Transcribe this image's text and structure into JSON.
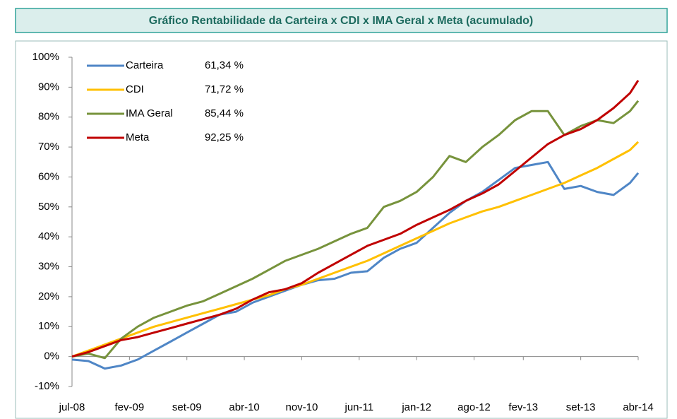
{
  "chart_data": {
    "type": "line",
    "title": "Gráfico Rentabilidade da Carteira x CDI x IMA Geral x Meta (acumulado)",
    "x": [
      "2008-07",
      "2008-09",
      "2008-11",
      "2009-01",
      "2009-03",
      "2009-05",
      "2009-07",
      "2009-09",
      "2009-11",
      "2010-01",
      "2010-03",
      "2010-05",
      "2010-07",
      "2010-09",
      "2010-11",
      "2011-01",
      "2011-03",
      "2011-05",
      "2011-07",
      "2011-09",
      "2011-11",
      "2012-01",
      "2012-03",
      "2012-05",
      "2012-07",
      "2012-09",
      "2012-11",
      "2013-01",
      "2013-03",
      "2013-05",
      "2013-07",
      "2013-09",
      "2013-11",
      "2014-01",
      "2014-03",
      "2014-04"
    ],
    "series": [
      {
        "name": "Carteira",
        "color": "#4f86c6",
        "label": "61,34 %",
        "values": [
          -1,
          -1.5,
          -4,
          -3,
          -1,
          2,
          5,
          8,
          11,
          14,
          15,
          18,
          20,
          22,
          24,
          25.5,
          26,
          28,
          28.5,
          33,
          36,
          38,
          43,
          48,
          52,
          55,
          59,
          63,
          64,
          65,
          56,
          57,
          55,
          54,
          58,
          61.34
        ]
      },
      {
        "name": "CDI",
        "color": "#ffc000",
        "label": "71,72 %",
        "values": [
          0,
          2,
          4,
          6,
          8,
          10,
          11.5,
          13,
          14.5,
          16,
          17.5,
          19,
          20.5,
          22.5,
          24,
          26,
          28,
          30,
          32,
          34.5,
          37,
          39.5,
          42,
          44.5,
          46.5,
          48.5,
          50,
          52,
          54,
          56,
          58,
          60.5,
          63,
          66,
          69,
          71.72
        ]
      },
      {
        "name": "IMA Geral",
        "color": "#77933c",
        "label": "85,44 %",
        "values": [
          0,
          1,
          -0.5,
          6,
          10,
          13,
          15,
          17,
          18.5,
          21,
          23.5,
          26,
          29,
          32,
          34,
          36,
          38.5,
          41,
          43,
          50,
          52,
          55,
          60,
          67,
          65,
          70,
          74,
          79,
          82,
          82,
          74,
          77,
          79,
          78,
          82,
          85.44
        ]
      },
      {
        "name": "Meta",
        "color": "#c00000",
        "label": "92,25 %",
        "values": [
          0,
          1.5,
          3.5,
          5.5,
          6.5,
          8,
          9.5,
          11,
          12.5,
          14,
          16,
          19,
          21.5,
          22.5,
          24.5,
          28,
          31,
          34,
          37,
          39,
          41,
          44,
          46.5,
          49,
          52,
          54.5,
          57.5,
          62,
          66.5,
          71,
          74,
          76,
          79,
          83,
          88,
          92.25
        ]
      }
    ],
    "xlim": [
      "2008-07",
      "2014-04"
    ],
    "xticks": [
      {
        "value": "2008-07",
        "label": "jul-08"
      },
      {
        "value": "2009-02",
        "label": "fev-09"
      },
      {
        "value": "2009-09",
        "label": "set-09"
      },
      {
        "value": "2010-04",
        "label": "abr-10"
      },
      {
        "value": "2010-11",
        "label": "nov-10"
      },
      {
        "value": "2011-06",
        "label": "jun-11"
      },
      {
        "value": "2012-01",
        "label": "jan-12"
      },
      {
        "value": "2012-08",
        "label": "ago-12"
      },
      {
        "value": "2013-02",
        "label": "fev-13"
      },
      {
        "value": "2013-09",
        "label": "set-13"
      },
      {
        "value": "2014-04",
        "label": "abr-14"
      }
    ],
    "ylim": [
      -10,
      100
    ],
    "yticks": [
      {
        "value": -10,
        "label": "-10%"
      },
      {
        "value": 0,
        "label": "0%"
      },
      {
        "value": 10,
        "label": "10%"
      },
      {
        "value": 20,
        "label": "20%"
      },
      {
        "value": 30,
        "label": "30%"
      },
      {
        "value": 40,
        "label": "40%"
      },
      {
        "value": 50,
        "label": "50%"
      },
      {
        "value": 60,
        "label": "60%"
      },
      {
        "value": 70,
        "label": "70%"
      },
      {
        "value": 80,
        "label": "80%"
      },
      {
        "value": 90,
        "label": "90%"
      },
      {
        "value": 100,
        "label": "100%"
      }
    ],
    "legend": "upper left"
  }
}
